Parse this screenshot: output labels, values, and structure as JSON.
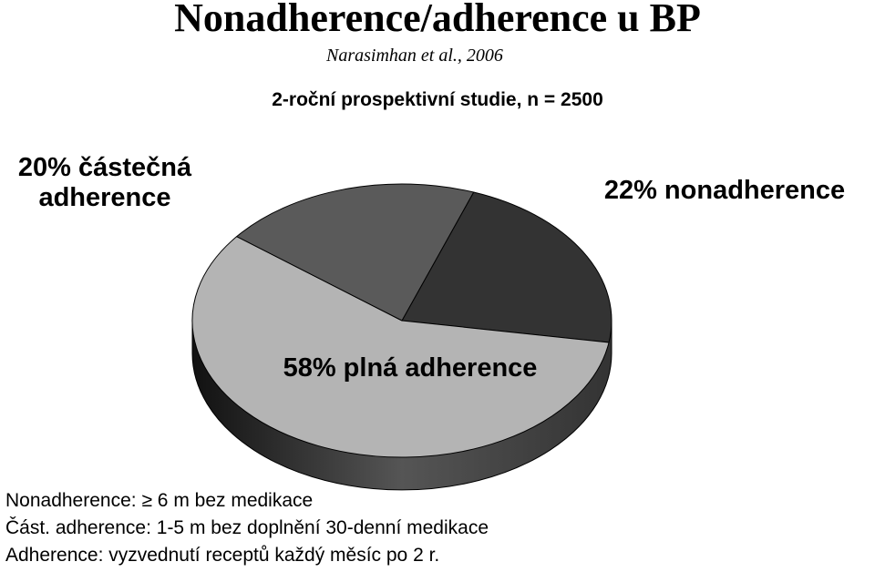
{
  "chart_data": {
    "type": "pie",
    "title": "Nonadherence/adherence u BP",
    "subtitle": "Narasimhan et al., 2006",
    "study": "2-roční prospektivní studie, n = 2500",
    "values": [
      22,
      58,
      20
    ],
    "value_labels": [
      "22% nonadherence",
      "58%  plná adherence",
      "20% částečná adherence"
    ],
    "colors": [
      "#333333",
      "#b4b4b4",
      "#5a5a5a"
    ],
    "notes": [
      "Nonadherence: ≥ 6 m bez medikace",
      "Část. adherence: 1-5 m bez doplnění 30-denní medikace",
      "Adherence: vyzvednutí receptů každý měsíc po 2 r."
    ]
  }
}
